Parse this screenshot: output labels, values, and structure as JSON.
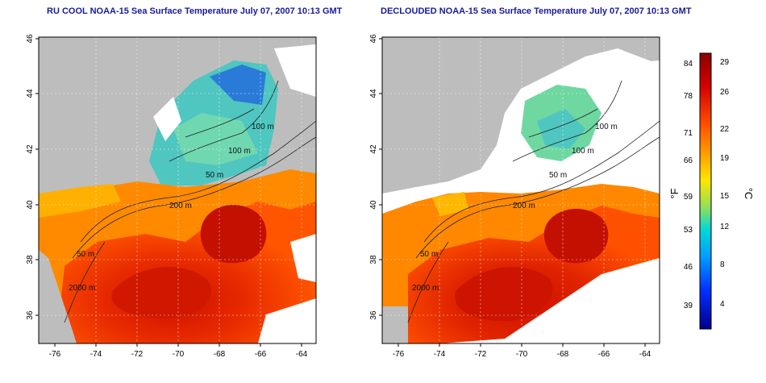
{
  "panels": [
    {
      "title": "RU COOL NOAA-15 Sea Surface Temperature July 07, 2007 10:13 GMT",
      "y_ticks": [
        "36",
        "38",
        "40",
        "42",
        "44",
        "46"
      ],
      "x_ticks": [
        "-76",
        "-74",
        "-72",
        "-70",
        "-68",
        "-66",
        "-64"
      ],
      "contour_labels": [
        "100 m",
        "100 m",
        "50 m",
        "200 m",
        "50 m",
        "2000 m"
      ]
    },
    {
      "title": "DECLOUDED NOAA-15 Sea Surface Temperature July 07, 2007 10:13 GMT",
      "y_ticks": [
        "36",
        "38",
        "40",
        "42",
        "44",
        "46"
      ],
      "x_ticks": [
        "-76",
        "-74",
        "-72",
        "-70",
        "-68",
        "-66",
        "-64"
      ],
      "contour_labels": [
        "100 m",
        "100 m",
        "50 m",
        "200 m",
        "50 m",
        "2000 m"
      ]
    }
  ],
  "colorbar": {
    "left_unit": "°F",
    "right_unit": "°C",
    "fahrenheit_ticks": [
      "84",
      "78",
      "71",
      "66",
      "59",
      "53",
      "46",
      "39"
    ],
    "celsius_ticks": [
      "29",
      "26",
      "22",
      "19",
      "15",
      "12",
      "8",
      "4"
    ],
    "colors": [
      "#8b0000",
      "#d40000",
      "#ff4a00",
      "#ff9a00",
      "#ffe600",
      "#8fe05a",
      "#00d8d8",
      "#009cff",
      "#0030ff",
      "#00008b"
    ]
  },
  "legend": {
    "land_color": "#bdbdbd",
    "cloud_color": "#ffffff"
  }
}
